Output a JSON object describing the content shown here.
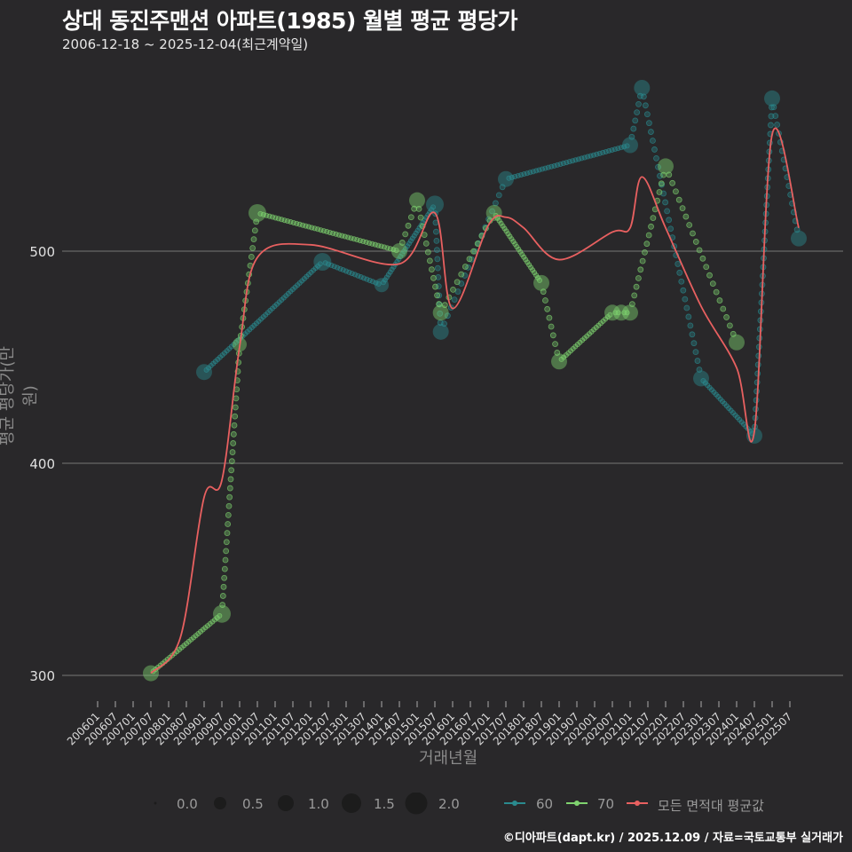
{
  "title": "상대 동진주맨션 아파트(1985) 월별 평균 평당가",
  "subtitle": "2006-12-18 ~ 2025-12-04(최근계약일)",
  "axes": {
    "ylabel": "평균 평당가(만 원)",
    "xlabel": "거래년월",
    "yticks": [
      "300",
      "400",
      "500"
    ]
  },
  "footer": "©디아파트(dapt.kr) / 2025.12.09 / 자료=국토교통부 실거래가",
  "legend": {
    "size_labels": [
      "0.0",
      "0.5",
      "1.0",
      "1.5",
      "2.0"
    ],
    "series": [
      "60",
      "70",
      "모든 면적대 평균값"
    ]
  },
  "colors": {
    "bg": "#29282a",
    "s60": "#2a8a8e",
    "s70": "#7fd36f",
    "avg": "#e86060",
    "grid": "#777777"
  },
  "chart_data": {
    "type": "line",
    "title": "상대 동진주맨션 아파트(1985) 월별 평균 평당가",
    "subtitle": "2006-12-18 ~ 2025-12-04(최근계약일)",
    "xlabel": "거래년월",
    "ylabel": "평균 평당가(만 원)",
    "ylim": [
      280,
      585
    ],
    "yticks": [
      300,
      400,
      500
    ],
    "x_ticks": [
      "200601",
      "200607",
      "200701",
      "200707",
      "200801",
      "200807",
      "200901",
      "200907",
      "201001",
      "201007",
      "201101",
      "201107",
      "201201",
      "201207",
      "201301",
      "201307",
      "201401",
      "201407",
      "201501",
      "201507",
      "201601",
      "201607",
      "201701",
      "201707",
      "201801",
      "201807",
      "201901",
      "201907",
      "202001",
      "202007",
      "202101",
      "202107",
      "202201",
      "202207",
      "202301",
      "202307",
      "202401",
      "202407",
      "202501",
      "202507"
    ],
    "legend_position": "bottom",
    "grid": "horizontal major",
    "series": [
      {
        "name": "60",
        "points": [
          [
            "200901",
            443
          ],
          [
            "201205",
            495
          ],
          [
            "201401",
            484
          ],
          [
            "201507",
            522
          ],
          [
            "201509",
            462
          ],
          [
            "201707",
            534
          ],
          [
            "202101",
            550
          ],
          [
            "202105",
            577
          ],
          [
            "202301",
            440
          ],
          [
            "202407",
            413
          ],
          [
            "202501",
            572
          ],
          [
            "202510",
            506
          ]
        ]
      },
      {
        "name": "70",
        "points": [
          [
            "200707",
            301
          ],
          [
            "200907",
            329
          ],
          [
            "201001",
            456
          ],
          [
            "201007",
            518
          ],
          [
            "201407",
            500
          ],
          [
            "201501",
            524
          ],
          [
            "201509",
            471
          ],
          [
            "201703",
            518
          ],
          [
            "201807",
            485
          ],
          [
            "201901",
            448
          ],
          [
            "202007",
            471
          ],
          [
            "202010",
            471
          ],
          [
            "202101",
            471
          ],
          [
            "202201",
            540
          ],
          [
            "202401",
            457
          ]
        ]
      },
      {
        "name": "모든 면적대 평균값",
        "points": [
          [
            "200707",
            301
          ],
          [
            "200805",
            318
          ],
          [
            "200901",
            384
          ],
          [
            "200907",
            392
          ],
          [
            "201001",
            455
          ],
          [
            "201007",
            497
          ],
          [
            "201201",
            503
          ],
          [
            "201407",
            494
          ],
          [
            "201507",
            518
          ],
          [
            "201601",
            473
          ],
          [
            "201701",
            512
          ],
          [
            "201707",
            516
          ],
          [
            "201801",
            511
          ],
          [
            "201901",
            496
          ],
          [
            "202007",
            509
          ],
          [
            "202101",
            511
          ],
          [
            "202105",
            535
          ],
          [
            "202201",
            511
          ],
          [
            "202301",
            474
          ],
          [
            "202401",
            445
          ],
          [
            "202407",
            415
          ],
          [
            "202501",
            555
          ],
          [
            "202510",
            511
          ]
        ]
      }
    ]
  }
}
